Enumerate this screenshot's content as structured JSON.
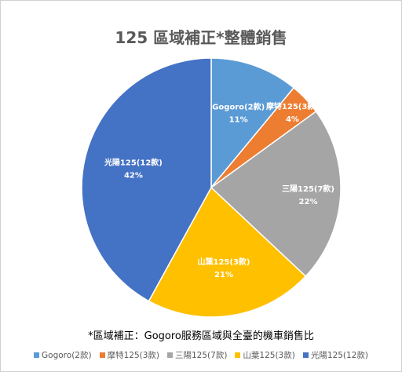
{
  "chart_data": {
    "type": "pie",
    "title": "125 區域補正*整體銷售",
    "note": "*區域補正：Gogoro服務區域與全臺的機車銷售比",
    "legend_position": "bottom",
    "slices": [
      {
        "name": "Gogoro(2款)",
        "value": 11,
        "label": "Gogoro(2款)",
        "pct_label": "11%",
        "color": "#5B9BD5"
      },
      {
        "name": "摩特125(3款)",
        "value": 4,
        "label": "摩特125(3款)",
        "pct_label": "4%",
        "color": "#ED7D31"
      },
      {
        "name": "三陽125(7款)",
        "value": 22,
        "label": "三陽125(7款)",
        "pct_label": "22%",
        "color": "#A5A5A5"
      },
      {
        "name": "山葉125(3款)",
        "value": 21,
        "label": "山葉125(3款)",
        "pct_label": "21%",
        "color": "#FFC000"
      },
      {
        "name": "光陽125(12款)",
        "value": 42,
        "label": "光陽125(12款)",
        "pct_label": "42%",
        "color": "#4472C4"
      }
    ]
  }
}
